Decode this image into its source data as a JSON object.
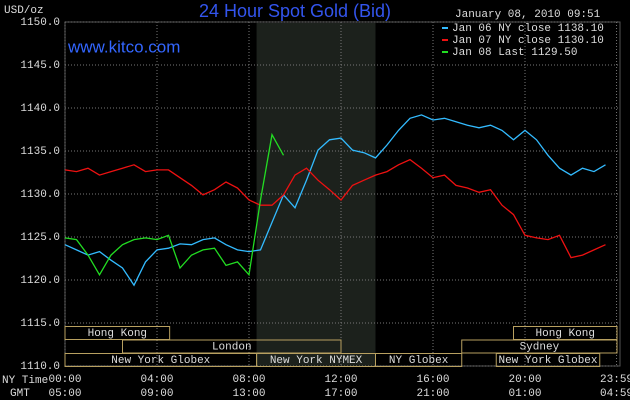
{
  "chart_data": {
    "type": "line",
    "title": "24 Hour Spot Gold (Bid)",
    "subtitle": "January 08, 2010 09:51",
    "source": "www.kitco.com",
    "y_label": "USD/oz",
    "x_label": "NY Time",
    "x2_label": "GMT",
    "x": [
      0,
      0.5,
      1,
      1.5,
      2,
      2.5,
      3,
      3.5,
      4,
      4.5,
      5,
      5.5,
      6,
      6.5,
      7,
      7.5,
      8,
      8.5,
      9,
      9.5,
      10,
      10.5,
      11,
      11.5,
      12,
      12.5,
      13,
      13.5,
      14,
      14.5,
      15,
      15.5,
      16,
      16.5,
      17,
      17.5,
      18,
      18.5,
      19,
      19.5,
      20,
      20.5,
      21,
      21.5,
      22,
      22.5,
      23,
      23.5
    ],
    "series": [
      {
        "name": "Jan 06 NY close 1138.10",
        "color": "#33bbff",
        "values": [
          1124.1,
          1123.5,
          1122.9,
          1123.3,
          1122.3,
          1121.4,
          1119.4,
          1122.1,
          1123.5,
          1123.7,
          1124.2,
          1124.1,
          1124.7,
          1124.9,
          1124.1,
          1123.5,
          1123.3,
          1123.5,
          1126.7,
          1129.9,
          1128.4,
          1131.6,
          1135.1,
          1136.3,
          1136.5,
          1135.1,
          1134.8,
          1134.2,
          1135.7,
          1137.4,
          1138.8,
          1139.2,
          1138.6,
          1138.8,
          1138.4,
          1138.0,
          1137.7,
          1138.0,
          1137.4,
          1136.3,
          1137.4,
          1136.3,
          1134.5,
          1133.0,
          1132.2,
          1133.0,
          1132.6,
          1133.4
        ]
      },
      {
        "name": "Jan 07 NY close 1130.10",
        "color": "#ee1111",
        "values": [
          1132.8,
          1132.6,
          1133.0,
          1132.2,
          1132.6,
          1133.0,
          1133.4,
          1132.6,
          1132.8,
          1132.8,
          1131.9,
          1131.0,
          1129.9,
          1130.5,
          1131.4,
          1130.7,
          1129.3,
          1128.7,
          1128.7,
          1129.9,
          1132.2,
          1133.0,
          1131.6,
          1130.5,
          1129.3,
          1131.0,
          1131.6,
          1132.2,
          1132.6,
          1133.4,
          1134.0,
          1133.0,
          1131.9,
          1132.2,
          1131.0,
          1130.7,
          1130.2,
          1130.5,
          1128.7,
          1127.6,
          1125.2,
          1124.9,
          1124.7,
          1125.2,
          1122.6,
          1122.9,
          1123.5,
          1124.1
        ]
      },
      {
        "name": "Jan 08 Last 1129.50",
        "color": "#22dd22",
        "values": [
          1124.9,
          1124.7,
          1122.9,
          1120.6,
          1122.9,
          1124.1,
          1124.7,
          1124.9,
          1124.7,
          1125.2,
          1121.4,
          1122.9,
          1123.5,
          1123.7,
          1121.7,
          1122.1,
          1120.6,
          1129.3,
          1136.9,
          1134.5,
          null,
          null,
          null,
          null,
          null,
          null,
          null,
          null,
          null,
          null,
          null,
          null,
          null,
          null,
          null,
          null,
          null,
          null,
          null,
          null,
          null,
          null,
          null,
          null,
          null,
          null,
          null,
          null
        ]
      }
    ],
    "xlim": [
      0,
      24
    ],
    "ylim": [
      1110,
      1150
    ],
    "yticks": [
      {
        "value": 1110,
        "label": "1110.0"
      },
      {
        "value": 1115,
        "label": "1115.0"
      },
      {
        "value": 1120,
        "label": "1120.0"
      },
      {
        "value": 1125,
        "label": "1125.0"
      },
      {
        "value": 1130,
        "label": "1130.0"
      },
      {
        "value": 1135,
        "label": "1135.0"
      },
      {
        "value": 1140,
        "label": "1140.0"
      },
      {
        "value": 1145,
        "label": "1145.0"
      },
      {
        "value": 1150,
        "label": "1150.0"
      }
    ],
    "xticks": [
      {
        "value": 0,
        "label": "00:00"
      },
      {
        "value": 4,
        "label": "04:00"
      },
      {
        "value": 8,
        "label": "08:00"
      },
      {
        "value": 12,
        "label": "12:00"
      },
      {
        "value": 16,
        "label": "16:00"
      },
      {
        "value": 20,
        "label": "20:00"
      },
      {
        "value": 23.98,
        "label": "23:59"
      }
    ],
    "x2ticks": [
      {
        "value": 0,
        "label": "05:00"
      },
      {
        "value": 4,
        "label": "09:00"
      },
      {
        "value": 8,
        "label": "13:00"
      },
      {
        "value": 12,
        "label": "17:00"
      },
      {
        "value": 16,
        "label": "21:00"
      },
      {
        "value": 20,
        "label": "01:00"
      },
      {
        "value": 23.98,
        "label": "04:59"
      }
    ],
    "highlight_range": [
      8.33,
      13.5
    ],
    "session_rows": [
      [
        {
          "name": "Hong Kong",
          "start": 0,
          "end": 4.55
        },
        {
          "name": "Hong Kong",
          "start": 19.5,
          "end": 24
        }
      ],
      [
        {
          "name": "London",
          "start": 2.5,
          "end": 12
        },
        {
          "name": "Sydney",
          "start": 17.25,
          "end": 24
        }
      ],
      [
        {
          "name": "New York Globex",
          "start": 0,
          "end": 8.33
        },
        {
          "name": "New York NYMEX",
          "start": 8.33,
          "end": 13.5
        },
        {
          "name": "NY Globex",
          "start": 13.5,
          "end": 17.25
        },
        {
          "name": "New York Globex",
          "start": 18.75,
          "end": 23.25
        }
      ]
    ],
    "grid": true
  }
}
